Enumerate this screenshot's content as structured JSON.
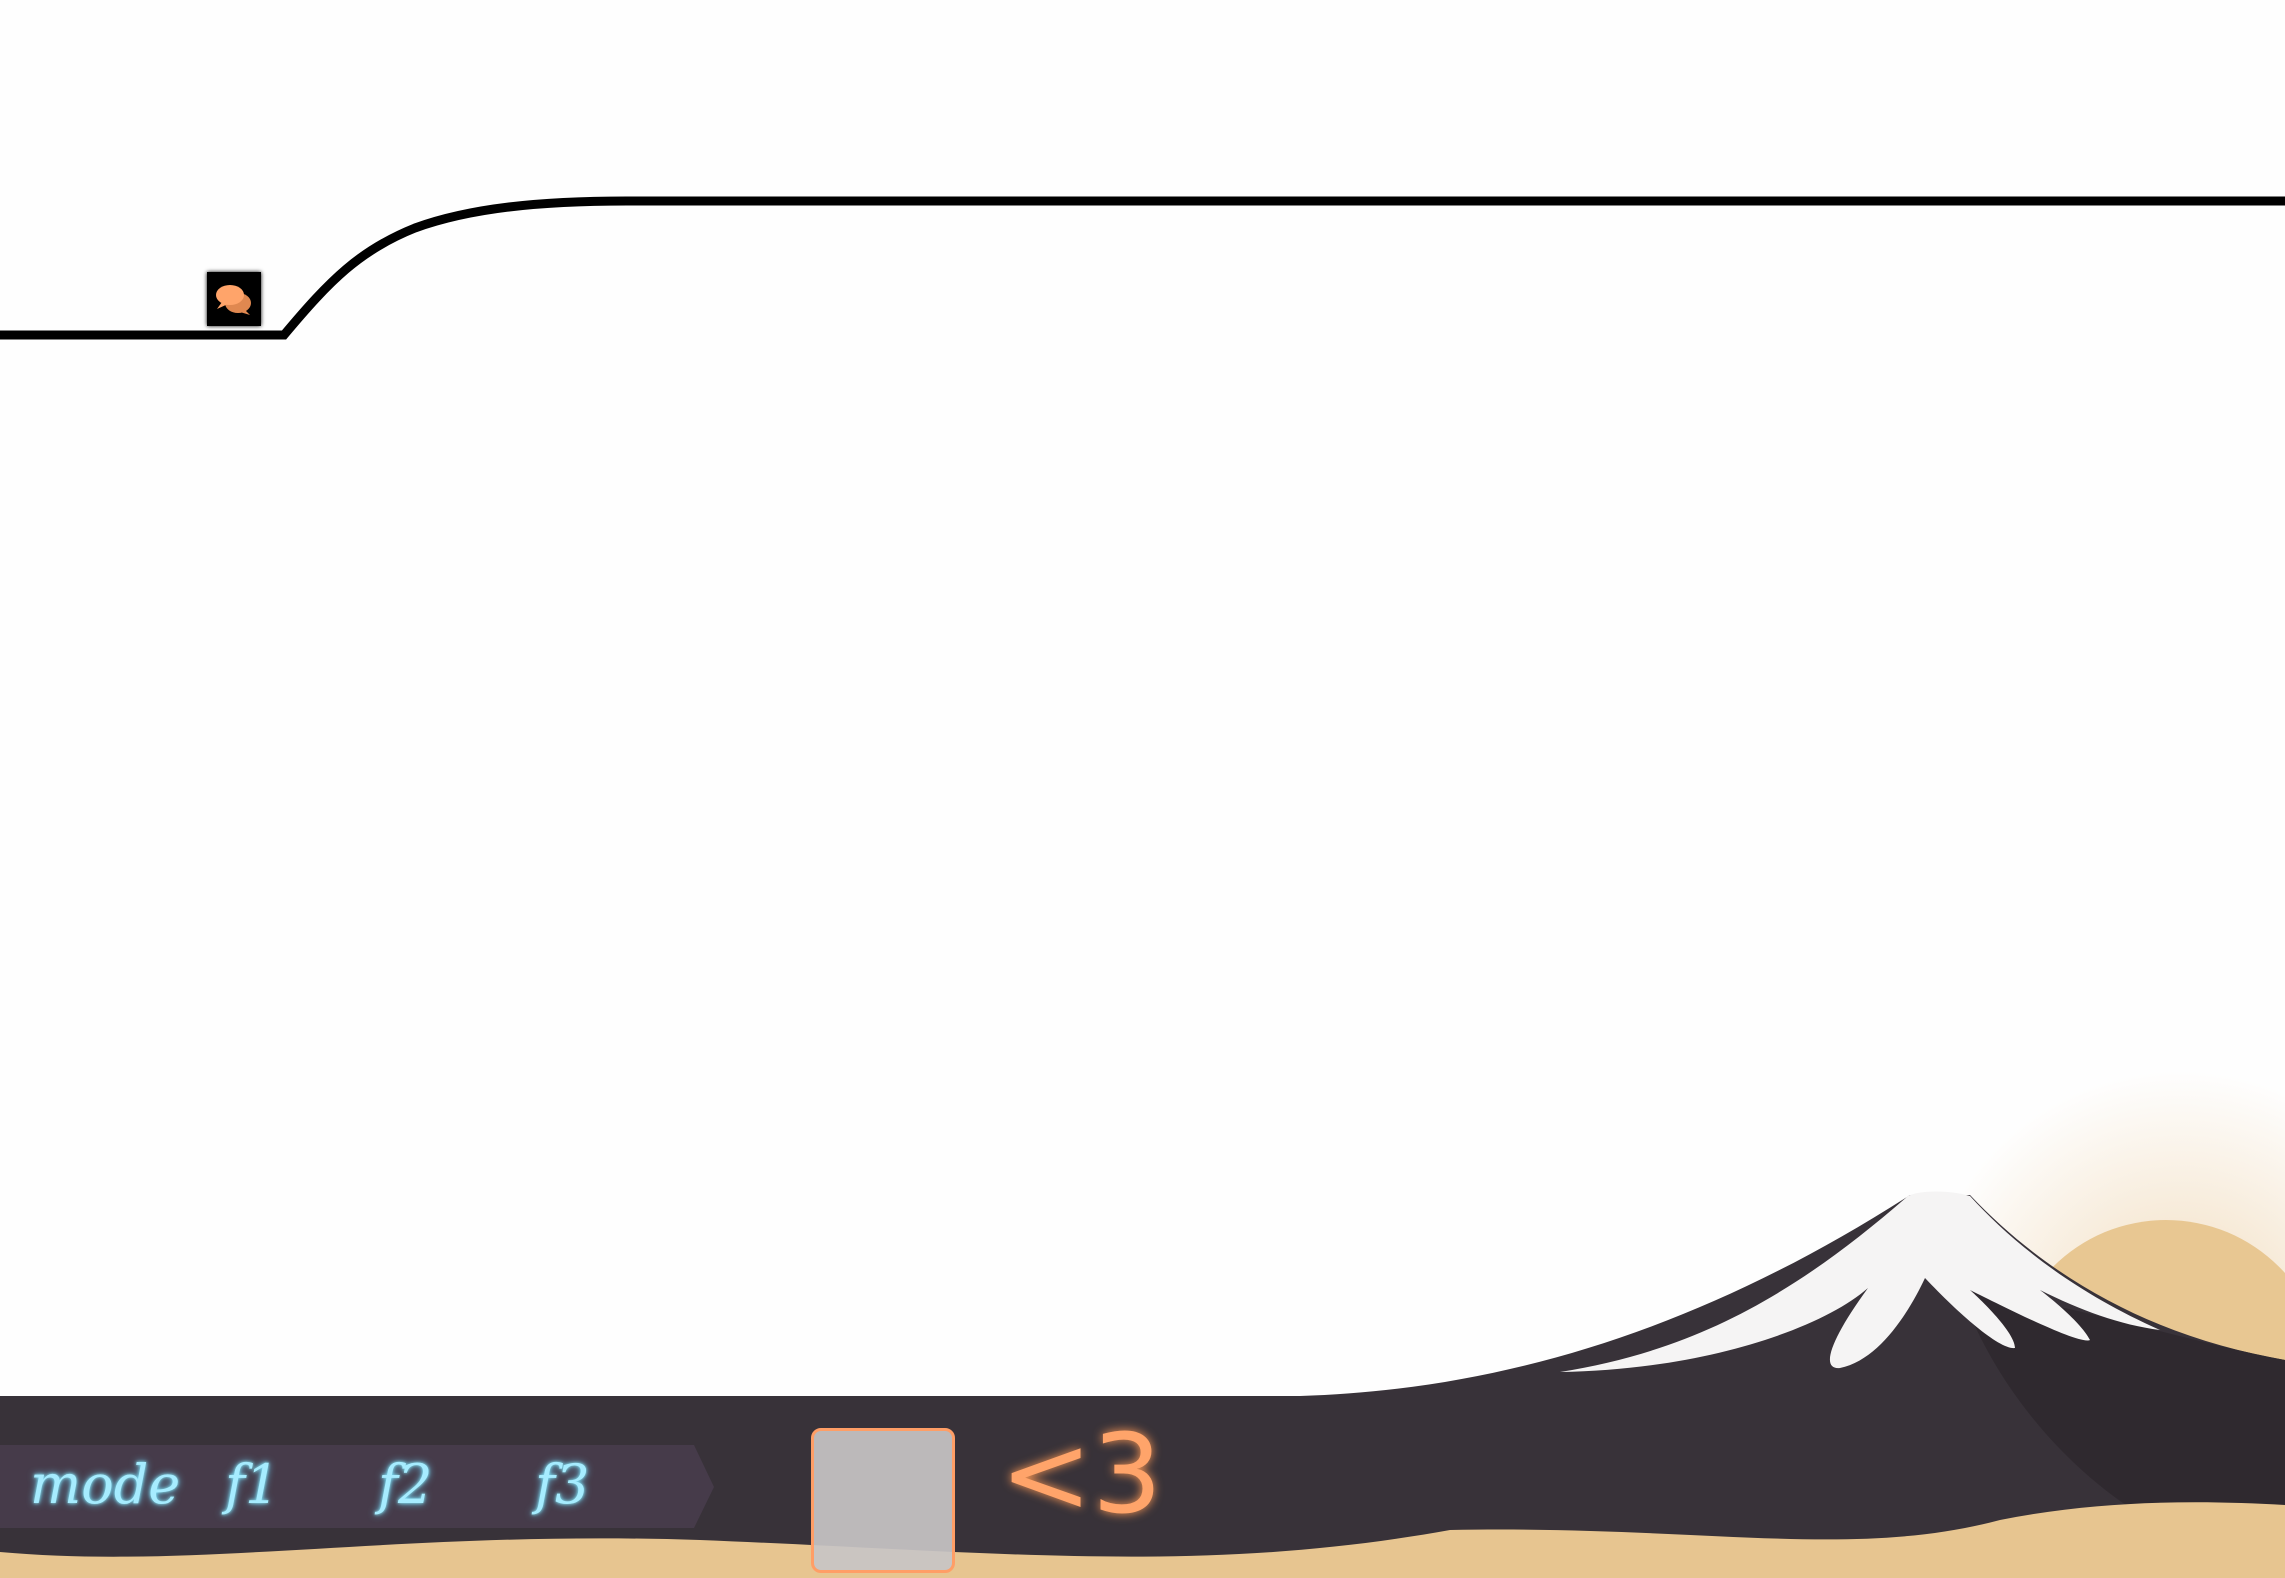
{
  "colors": {
    "track": "#000000",
    "panel": "#383239",
    "mode_bar": "#463b4a",
    "mode_text": "#a6ecff",
    "accent": "#ffa46a",
    "sand": "#e7c590",
    "snow": "#f5f4f4"
  },
  "hud": {
    "modes": [
      "mode",
      "f1",
      "f2",
      "f3"
    ],
    "lives_label": "<3"
  },
  "icons": {
    "chat": "chat-bubbles-icon"
  }
}
